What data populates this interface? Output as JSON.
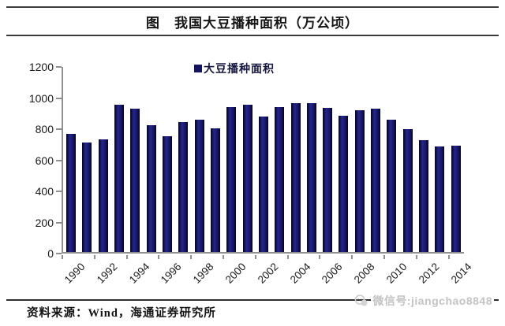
{
  "title": "图　我国大豆播种面积（万公顷）",
  "legend": {
    "label": "大豆播种面积",
    "marker_color": "#14145e"
  },
  "footer": {
    "source": "资料来源：Wind，海通证券研究所",
    "watermark": "微信号:jiangchao8848"
  },
  "chart_data": {
    "type": "bar",
    "title": "图　我国大豆播种面积（万公顷）",
    "series_name": "大豆播种面积",
    "categories": [
      1990,
      1991,
      1992,
      1993,
      1994,
      1995,
      1996,
      1997,
      1998,
      1999,
      2000,
      2001,
      2002,
      2003,
      2004,
      2005,
      2006,
      2007,
      2008,
      2009,
      2010,
      2011,
      2012,
      2013,
      2014
    ],
    "values": [
      760,
      705,
      722,
      945,
      922,
      813,
      747,
      835,
      850,
      796,
      931,
      948,
      872,
      931,
      959,
      959,
      928,
      875,
      913,
      920,
      852,
      790,
      717,
      679,
      682
    ],
    "x_tick_labels": [
      "1990",
      "1992",
      "1994",
      "1996",
      "1998",
      "2000",
      "2002",
      "2004",
      "2006",
      "2008",
      "2010",
      "2012",
      "2014"
    ],
    "y_ticks": [
      0,
      200,
      400,
      600,
      800,
      1000,
      1200
    ],
    "ylim": [
      0,
      1200
    ],
    "xlabel": "",
    "ylabel": "",
    "bar_color": "#14145e",
    "grid": false,
    "legend_position": "top-center"
  }
}
